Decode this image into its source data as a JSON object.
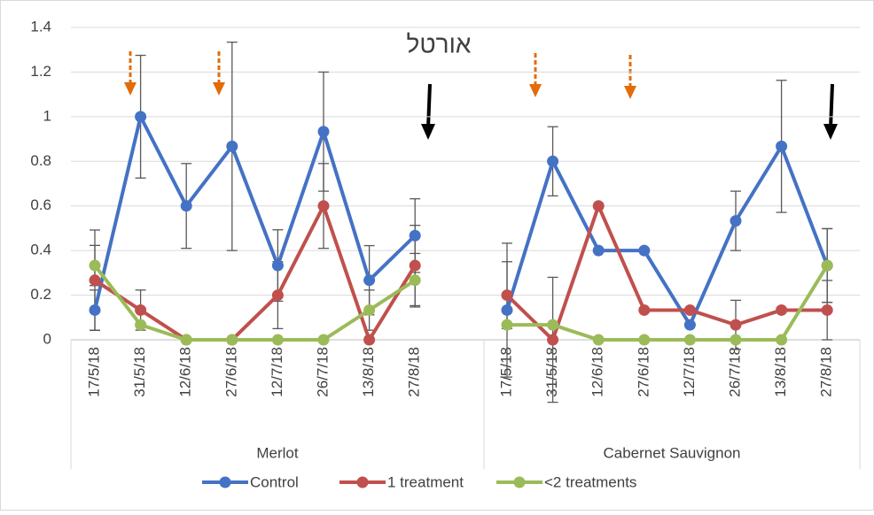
{
  "chart_data": {
    "type": "line",
    "title": "אורטל",
    "groups": [
      {
        "name": "Merlot",
        "categories": [
          "17/5/18",
          "31/5/18",
          "12/6/18",
          "27/6/18",
          "12/7/18",
          "26/7/18",
          "13/8/18",
          "27/8/18"
        ]
      },
      {
        "name": "Cabernet Sauvignon",
        "categories": [
          "17/5/18",
          "31/5/18",
          "12/6/18",
          "27/6/18",
          "12/7/18",
          "26/7/18",
          "13/8/18",
          "27/8/18"
        ]
      }
    ],
    "series": [
      {
        "name": "Control",
        "color": "#4472c4",
        "values": [
          [
            0.133,
            1.0,
            0.6,
            0.867,
            0.333,
            0.933,
            0.267,
            0.467
          ],
          [
            0.133,
            0.8,
            0.4,
            0.4,
            0.067,
            0.533,
            0.867,
            0.333
          ]
        ],
        "errors": [
          [
            0.09,
            0.275,
            0.19,
            0.467,
            0.16,
            0.267,
            0.155,
            0.165
          ],
          [
            0.3,
            0.155,
            0,
            0,
            0,
            0.133,
            0.296,
            0.165
          ]
        ]
      },
      {
        "name": "1 treatment",
        "color": "#c0504d",
        "values": [
          [
            0.267,
            0.133,
            0,
            0,
            0.2,
            0.6,
            0,
            0.333
          ],
          [
            0.2,
            0,
            0.6,
            0.133,
            0.133,
            0.067,
            0.133,
            0.133
          ]
        ],
        "errors": [
          [
            0.225,
            0.09,
            0,
            0,
            0.15,
            0.19,
            0,
            0.18
          ],
          [
            0.15,
            0.28,
            0,
            0,
            0,
            0.11,
            0,
            0.133
          ]
        ]
      },
      {
        "name": "<2 treatments",
        "color": "#9bbb59",
        "values": [
          [
            0.333,
            0.067,
            0,
            0,
            0,
            0,
            0.133,
            0.267
          ],
          [
            0.067,
            0.067,
            0,
            0,
            0,
            0,
            0,
            0.333
          ]
        ],
        "errors": [
          [
            0.09,
            0,
            0,
            0,
            0,
            0,
            0.09,
            0.12
          ],
          [
            0,
            0,
            0,
            0,
            0,
            0,
            0,
            0.165
          ]
        ]
      }
    ],
    "ylim": [
      0,
      1.4
    ],
    "yticks": [
      0,
      0.2,
      0.4,
      0.6,
      0.8,
      1,
      1.2,
      1.4
    ],
    "grid": true
  }
}
